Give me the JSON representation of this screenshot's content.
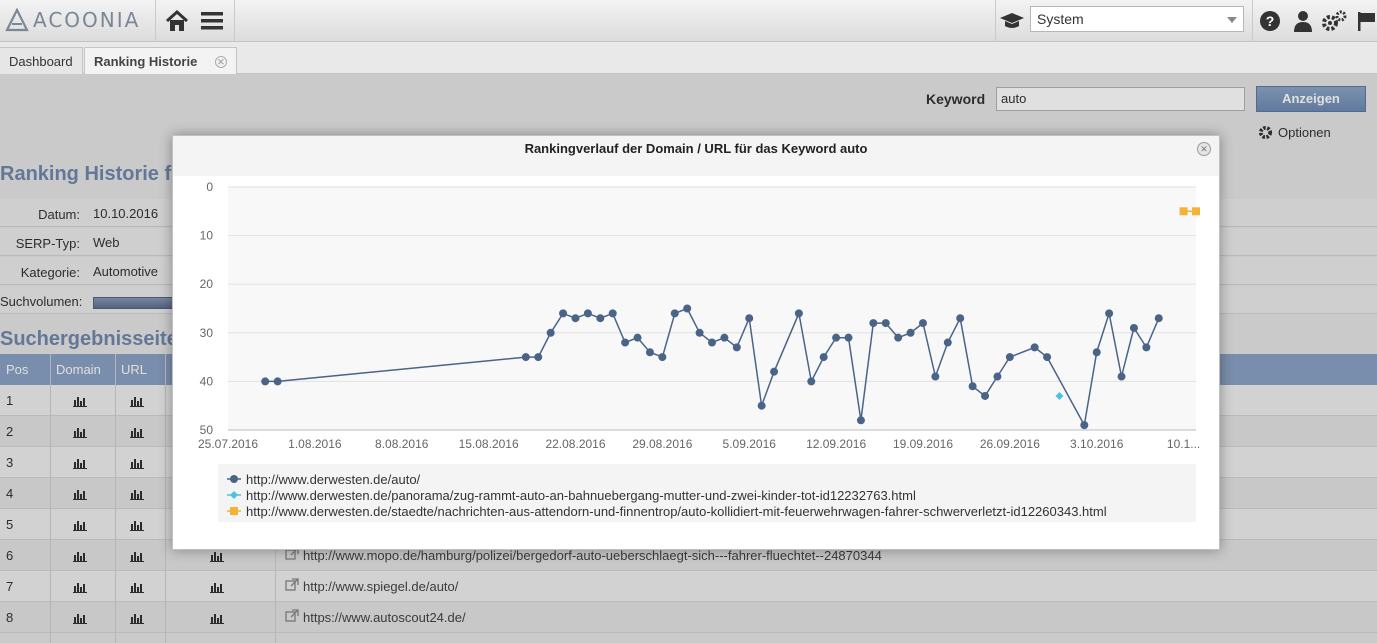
{
  "app": {
    "logo_text": "ACOONIA"
  },
  "toolbar": {
    "system_select": "System"
  },
  "tabs": [
    {
      "label": "Dashboard"
    },
    {
      "label": "Ranking Historie"
    }
  ],
  "keyword": {
    "label": "Keyword",
    "value": "auto",
    "show_button": "Anzeigen",
    "options_label": "Optionen"
  },
  "page": {
    "title": "Ranking Historie für das Keyword \"auto\"",
    "date_label": "Datum:",
    "date_value": "10.10.2016",
    "serp_label": "SERP-Typ:",
    "serp_value": "Web",
    "category_label": "Kategorie:",
    "category_value": "Automotive",
    "volume_label": "Suchvolumen:",
    "results_title": "Suchergebnisseite"
  },
  "table": {
    "headers": [
      "Pos",
      "Domain",
      "URL"
    ],
    "rows": [
      {
        "pos": "1",
        "url": ""
      },
      {
        "pos": "2",
        "url": ""
      },
      {
        "pos": "3",
        "url": ""
      },
      {
        "pos": "4",
        "url": ""
      },
      {
        "pos": "5",
        "url": ""
      },
      {
        "pos": "6",
        "url": "http://www.mopo.de/hamburg/polizei/bergedorf-auto-ueberschlaegt-sich---fahrer-fluechtet--24870344"
      },
      {
        "pos": "7",
        "url": "http://www.spiegel.de/auto/"
      },
      {
        "pos": "8",
        "url": "https://www.autoscout24.de/"
      }
    ]
  },
  "modal": {
    "title": "Rankingverlauf der Domain / URL für das Keyword auto"
  },
  "chart_data": {
    "type": "line",
    "title": "Rankingverlauf der Domain / URL für das Keyword auto",
    "y_reversed": true,
    "ylim": [
      0,
      50
    ],
    "y_ticks": [
      "0",
      "10",
      "20",
      "30",
      "40",
      "50"
    ],
    "x_range": [
      "2016-07-25",
      "2016-10-11"
    ],
    "x_ticks": [
      "25.07.2016",
      "1.08.2016",
      "8.08.2016",
      "15.08.2016",
      "22.08.2016",
      "29.08.2016",
      "5.09.2016",
      "12.09.2016",
      "19.09.2016",
      "26.09.2016",
      "3.10.2016",
      "10.1..."
    ],
    "grid": true,
    "legend_position": "bottom",
    "series": [
      {
        "name": "http://www.derwesten.de/auto/",
        "color": "#4a6487",
        "marker": "circle",
        "points": [
          [
            "2016-07-28",
            40
          ],
          [
            "2016-07-29",
            40
          ],
          [
            "2016-08-18",
            35
          ],
          [
            "2016-08-19",
            35
          ],
          [
            "2016-08-20",
            30
          ],
          [
            "2016-08-21",
            26
          ],
          [
            "2016-08-22",
            27
          ],
          [
            "2016-08-23",
            26
          ],
          [
            "2016-08-24",
            27
          ],
          [
            "2016-08-25",
            26
          ],
          [
            "2016-08-26",
            32
          ],
          [
            "2016-08-27",
            31
          ],
          [
            "2016-08-28",
            34
          ],
          [
            "2016-08-29",
            35
          ],
          [
            "2016-08-30",
            26
          ],
          [
            "2016-08-31",
            25
          ],
          [
            "2016-09-01",
            30
          ],
          [
            "2016-09-02",
            32
          ],
          [
            "2016-09-03",
            31
          ],
          [
            "2016-09-04",
            33
          ],
          [
            "2016-09-05",
            27
          ],
          [
            "2016-09-06",
            45
          ],
          [
            "2016-09-07",
            38
          ],
          [
            "2016-09-09",
            26
          ],
          [
            "2016-09-10",
            40
          ],
          [
            "2016-09-11",
            35
          ],
          [
            "2016-09-12",
            31
          ],
          [
            "2016-09-13",
            31
          ],
          [
            "2016-09-14",
            48
          ],
          [
            "2016-09-15",
            28
          ],
          [
            "2016-09-16",
            28
          ],
          [
            "2016-09-17",
            31
          ],
          [
            "2016-09-18",
            30
          ],
          [
            "2016-09-19",
            28
          ],
          [
            "2016-09-20",
            39
          ],
          [
            "2016-09-21",
            32
          ],
          [
            "2016-09-22",
            27
          ],
          [
            "2016-09-23",
            41
          ],
          [
            "2016-09-24",
            43
          ],
          [
            "2016-09-25",
            39
          ],
          [
            "2016-09-26",
            35
          ],
          [
            "2016-09-28",
            33
          ],
          [
            "2016-09-29",
            35
          ],
          [
            "2016-10-02",
            49
          ],
          [
            "2016-10-03",
            34
          ],
          [
            "2016-10-04",
            26
          ],
          [
            "2016-10-05",
            39
          ],
          [
            "2016-10-06",
            29
          ],
          [
            "2016-10-07",
            33
          ],
          [
            "2016-10-08",
            27
          ]
        ]
      },
      {
        "name": "http://www.derwesten.de/panorama/zug-rammt-auto-an-bahnuebergang-mutter-und-zwei-kinder-tot-id12232763.html",
        "color": "#4dc3e0",
        "marker": "diamond",
        "points": [
          [
            "2016-09-30",
            43
          ]
        ]
      },
      {
        "name": "http://www.derwesten.de/staedte/nachrichten-aus-attendorn-und-finnentrop/auto-kollidiert-mit-feuerwehrwagen-fahrer-schwerverletzt-id12260343.html",
        "color": "#f5b335",
        "marker": "square",
        "points": [
          [
            "2016-10-10",
            5
          ],
          [
            "2016-10-11",
            5
          ]
        ]
      }
    ]
  }
}
